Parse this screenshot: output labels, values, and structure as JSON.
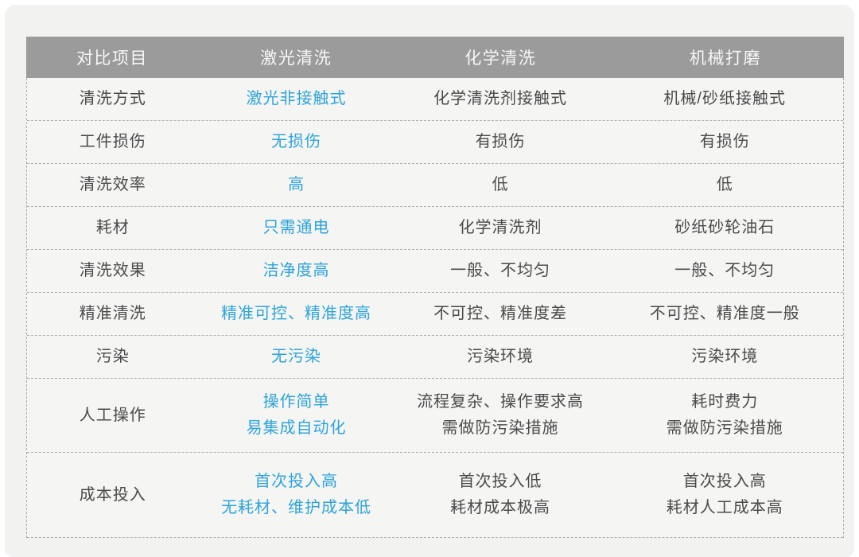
{
  "colors": {
    "page_bg": "#ffffff",
    "card_bg": "#f2f2f0",
    "body_bg": "#f5f5f4",
    "header_bg": "#9b9b9b",
    "header_text": "#f7f7f7",
    "text": "#4a4a4a",
    "accent_blue": "#2ea4d9",
    "divider": "#aeaeae"
  },
  "table": {
    "headers": [
      "对比项目",
      "激光清洗",
      "化学清洗",
      "机械打磨"
    ],
    "rows": [
      {
        "label": "清洗方式",
        "laser": [
          "激光非接触式"
        ],
        "chemical": [
          "化学清洗剂接触式"
        ],
        "mechanical": [
          "机械/砂纸接触式"
        ]
      },
      {
        "label": "工件损伤",
        "laser": [
          "无损伤"
        ],
        "chemical": [
          "有损伤"
        ],
        "mechanical": [
          "有损伤"
        ]
      },
      {
        "label": "清洗效率",
        "laser": [
          "高"
        ],
        "chemical": [
          "低"
        ],
        "mechanical": [
          "低"
        ]
      },
      {
        "label": "耗材",
        "laser": [
          "只需通电"
        ],
        "chemical": [
          "化学清洗剂"
        ],
        "mechanical": [
          "砂纸砂轮油石"
        ]
      },
      {
        "label": "清洗效果",
        "laser": [
          "洁净度高"
        ],
        "chemical": [
          "一般、不均匀"
        ],
        "mechanical": [
          "一般、不均匀"
        ]
      },
      {
        "label": "精准清洗",
        "laser": [
          "精准可控、精准度高"
        ],
        "chemical": [
          "不可控、精准度差"
        ],
        "mechanical": [
          "不可控、精准度一般"
        ]
      },
      {
        "label": "污染",
        "laser": [
          "无污染"
        ],
        "chemical": [
          "污染环境"
        ],
        "mechanical": [
          "污染环境"
        ]
      },
      {
        "label": "人工操作",
        "laser": [
          "操作简单",
          "易集成自动化"
        ],
        "chemical": [
          "流程复杂、操作要求高",
          "需做防污染措施"
        ],
        "mechanical": [
          "耗时费力",
          "需做防污染措施"
        ]
      },
      {
        "label": "成本投入",
        "laser": [
          "首次投入高",
          "无耗材、维护成本低"
        ],
        "chemical": [
          "首次投入低",
          "耗材成本极高"
        ],
        "mechanical": [
          "首次投入高",
          "耗材人工成本高"
        ]
      }
    ]
  }
}
